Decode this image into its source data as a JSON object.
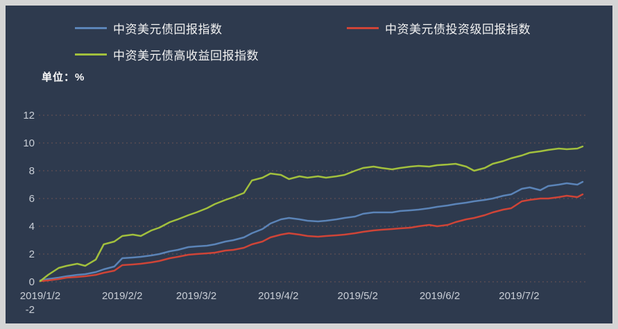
{
  "legend": [
    {
      "label": "中资美元债回报指数",
      "color": "#5b84b8"
    },
    {
      "label": "中资美元债投资级回报指数",
      "color": "#cf4437"
    },
    {
      "label": "中资美元债高收益回报指数",
      "color": "#a2c03d"
    }
  ],
  "unit_label": "单位：%",
  "colors": {
    "background": "#2e3a4e",
    "frame_border": "#d5d5d5",
    "grid": "#6e5454",
    "axis_text": "#c9ced6",
    "legend_text": "#f2f2f2"
  },
  "chart_data": {
    "type": "line",
    "x_unit": "days since 2019/1/2",
    "x": [
      0,
      3,
      7,
      10,
      14,
      17,
      21,
      24,
      28,
      31,
      35,
      38,
      42,
      45,
      49,
      52,
      56,
      59,
      63,
      66,
      70,
      73,
      77,
      80,
      84,
      87,
      91,
      94,
      98,
      101,
      105,
      108,
      112,
      115,
      119,
      122,
      126,
      129,
      133,
      136,
      140,
      143,
      147,
      150,
      154,
      157,
      161,
      164,
      168,
      171,
      175,
      178,
      182,
      185,
      189,
      192,
      196,
      199,
      203,
      205
    ],
    "series": [
      {
        "name": "中资美元债回报指数",
        "color": "#5b84b8",
        "values": [
          0.1,
          0.2,
          0.3,
          0.4,
          0.5,
          0.55,
          0.7,
          0.9,
          1.1,
          1.7,
          1.75,
          1.8,
          1.9,
          2.0,
          2.2,
          2.3,
          2.5,
          2.55,
          2.6,
          2.7,
          2.9,
          3.0,
          3.2,
          3.5,
          3.8,
          4.2,
          4.5,
          4.6,
          4.5,
          4.4,
          4.35,
          4.4,
          4.5,
          4.6,
          4.7,
          4.9,
          5.0,
          5.0,
          5.0,
          5.1,
          5.15,
          5.2,
          5.3,
          5.4,
          5.5,
          5.6,
          5.7,
          5.8,
          5.9,
          6.0,
          6.2,
          6.3,
          6.7,
          6.8,
          6.6,
          6.9,
          7.0,
          7.1,
          7.0,
          7.2
        ]
      },
      {
        "name": "中资美元债投资级回报指数",
        "color": "#cf4437",
        "values": [
          0.05,
          0.1,
          0.2,
          0.3,
          0.35,
          0.4,
          0.5,
          0.65,
          0.8,
          1.2,
          1.25,
          1.3,
          1.4,
          1.5,
          1.7,
          1.8,
          1.95,
          2.0,
          2.05,
          2.1,
          2.25,
          2.3,
          2.45,
          2.7,
          2.9,
          3.2,
          3.4,
          3.5,
          3.4,
          3.3,
          3.25,
          3.3,
          3.35,
          3.4,
          3.5,
          3.6,
          3.7,
          3.75,
          3.8,
          3.85,
          3.9,
          4.0,
          4.1,
          4.0,
          4.1,
          4.3,
          4.5,
          4.6,
          4.8,
          5.0,
          5.2,
          5.3,
          5.8,
          5.9,
          6.0,
          6.0,
          6.1,
          6.2,
          6.1,
          6.3
        ]
      },
      {
        "name": "中资美元债高收益回报指数",
        "color": "#a2c03d",
        "values": [
          0.05,
          0.5,
          1.0,
          1.15,
          1.3,
          1.15,
          1.6,
          2.7,
          2.9,
          3.3,
          3.4,
          3.3,
          3.7,
          3.9,
          4.3,
          4.5,
          4.8,
          5.0,
          5.3,
          5.6,
          5.9,
          6.1,
          6.4,
          7.3,
          7.5,
          7.8,
          7.7,
          7.4,
          7.6,
          7.5,
          7.6,
          7.5,
          7.6,
          7.7,
          8.0,
          8.2,
          8.3,
          8.2,
          8.1,
          8.2,
          8.3,
          8.35,
          8.3,
          8.4,
          8.45,
          8.5,
          8.3,
          8.0,
          8.2,
          8.5,
          8.7,
          8.9,
          9.1,
          9.3,
          9.4,
          9.5,
          9.6,
          9.55,
          9.6,
          9.75
        ]
      }
    ],
    "x_ticks": [
      {
        "label": "2019/1/2",
        "day": 0
      },
      {
        "label": "2019/2/2",
        "day": 31
      },
      {
        "label": "2019/3/2",
        "day": 59
      },
      {
        "label": "2019/4/2",
        "day": 90
      },
      {
        "label": "2019/5/2",
        "day": 120
      },
      {
        "label": "2019/6/2",
        "day": 151
      },
      {
        "label": "2019/7/2",
        "day": 181
      }
    ],
    "y_ticks": [
      12,
      10,
      8,
      6,
      4,
      2,
      0,
      -2
    ],
    "grid_ticks": [
      12,
      10,
      8,
      6,
      4,
      2,
      0
    ],
    "ylim": [
      -2,
      12
    ],
    "grid": "horizontal-dashed",
    "legend_position": "top"
  }
}
